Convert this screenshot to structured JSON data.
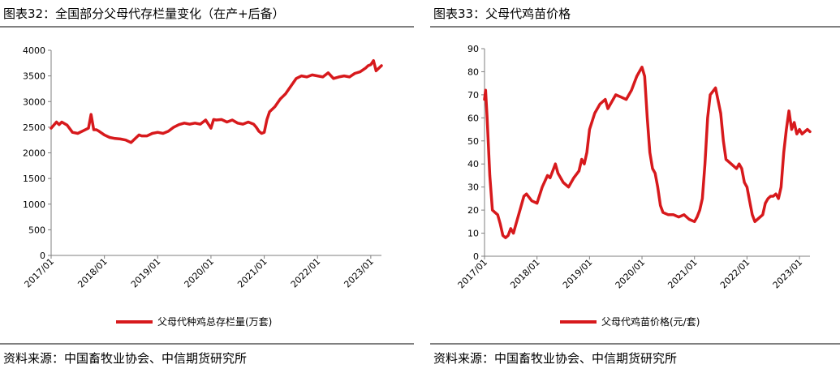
{
  "left": {
    "title": "图表32：全国部分父母代存栏量变化（在产+后备）",
    "source": "资料来源：中国畜牧业协会、中信期货研究所",
    "chart_data": {
      "type": "line",
      "color": "#d7191c",
      "ylim": [
        0,
        4000
      ],
      "yticks": [
        "0",
        "500",
        "1000",
        "1500",
        "2000",
        "2500",
        "3000",
        "3500",
        "4000"
      ],
      "xticks": [
        "2017/01",
        "2018/01",
        "2019/01",
        "2020/01",
        "2021/01",
        "2022/01",
        "2023/01"
      ],
      "series": [
        {
          "name": "父母代种鸡总存栏量(万套)",
          "x": [
            2017.0,
            2017.05,
            2017.1,
            2017.15,
            2017.2,
            2017.3,
            2017.4,
            2017.5,
            2017.6,
            2017.7,
            2017.75,
            2017.8,
            2017.85,
            2017.9,
            2018.0,
            2018.1,
            2018.2,
            2018.3,
            2018.4,
            2018.5,
            2018.6,
            2018.65,
            2018.7,
            2018.8,
            2018.9,
            2019.0,
            2019.1,
            2019.2,
            2019.3,
            2019.4,
            2019.5,
            2019.6,
            2019.7,
            2019.8,
            2019.9,
            2019.95,
            2020.0,
            2020.05,
            2020.1,
            2020.2,
            2020.3,
            2020.4,
            2020.5,
            2020.6,
            2020.7,
            2020.8,
            2020.85,
            2020.9,
            2020.95,
            2021.0,
            2021.05,
            2021.1,
            2021.2,
            2021.3,
            2021.4,
            2021.5,
            2021.6,
            2021.7,
            2021.8,
            2021.9,
            2022.0,
            2022.1,
            2022.2,
            2022.3,
            2022.4,
            2022.5,
            2022.6,
            2022.7,
            2022.8,
            2022.9,
            2022.95,
            2023.0,
            2023.05,
            2023.1,
            2023.15,
            2023.2
          ],
          "values": [
            2480,
            2540,
            2600,
            2550,
            2600,
            2540,
            2400,
            2380,
            2430,
            2480,
            2750,
            2450,
            2450,
            2420,
            2350,
            2300,
            2280,
            2270,
            2250,
            2200,
            2300,
            2350,
            2330,
            2330,
            2380,
            2400,
            2380,
            2420,
            2500,
            2550,
            2580,
            2560,
            2580,
            2560,
            2640,
            2560,
            2480,
            2650,
            2640,
            2650,
            2600,
            2640,
            2580,
            2560,
            2600,
            2560,
            2500,
            2420,
            2380,
            2400,
            2650,
            2800,
            2900,
            3050,
            3150,
            3300,
            3450,
            3500,
            3480,
            3520,
            3500,
            3480,
            3560,
            3450,
            3480,
            3500,
            3480,
            3550,
            3580,
            3650,
            3700,
            3720,
            3800,
            3600,
            3650,
            3700
          ]
        }
      ]
    }
  },
  "right": {
    "title": "图表33：父母代鸡苗价格",
    "source": "资料来源：中国畜牧业协会、中信期货研究所",
    "chart_data": {
      "type": "line",
      "color": "#d7191c",
      "ylim": [
        0,
        90
      ],
      "yticks": [
        "0",
        "10",
        "20",
        "30",
        "40",
        "50",
        "60",
        "70",
        "80",
        "90"
      ],
      "xticks": [
        "2017/01",
        "2018/01",
        "2019/01",
        "2020/01",
        "2021/01",
        "2022/01",
        "2023/01"
      ],
      "series": [
        {
          "name": "父母代鸡苗价格(元/套)",
          "x": [
            2017.0,
            2017.02,
            2017.05,
            2017.1,
            2017.15,
            2017.2,
            2017.25,
            2017.3,
            2017.35,
            2017.4,
            2017.45,
            2017.5,
            2017.55,
            2017.6,
            2017.7,
            2017.75,
            2017.8,
            2017.9,
            2018.0,
            2018.1,
            2018.2,
            2018.25,
            2018.3,
            2018.35,
            2018.4,
            2018.5,
            2018.6,
            2018.7,
            2018.8,
            2018.85,
            2018.9,
            2018.95,
            2019.0,
            2019.1,
            2019.2,
            2019.3,
            2019.35,
            2019.4,
            2019.5,
            2019.6,
            2019.7,
            2019.8,
            2019.85,
            2019.9,
            2019.95,
            2020.0,
            2020.05,
            2020.1,
            2020.15,
            2020.2,
            2020.25,
            2020.3,
            2020.35,
            2020.4,
            2020.5,
            2020.6,
            2020.7,
            2020.8,
            2020.9,
            2021.0,
            2021.05,
            2021.1,
            2021.15,
            2021.2,
            2021.25,
            2021.3,
            2021.4,
            2021.5,
            2021.55,
            2021.6,
            2021.7,
            2021.8,
            2021.85,
            2021.9,
            2021.95,
            2022.0,
            2022.05,
            2022.1,
            2022.15,
            2022.2,
            2022.3,
            2022.35,
            2022.4,
            2022.45,
            2022.5,
            2022.55,
            2022.6,
            2022.65,
            2022.7,
            2022.75,
            2022.8,
            2022.85,
            2022.9,
            2022.95,
            2023.0,
            2023.05,
            2023.1,
            2023.15,
            2023.2
          ],
          "values": [
            68,
            72,
            60,
            35,
            20,
            19,
            18,
            14,
            9,
            8,
            9,
            12,
            10,
            14,
            22,
            26,
            27,
            24,
            23,
            30,
            35,
            34,
            37,
            40,
            36,
            32,
            30,
            34,
            37,
            42,
            40,
            45,
            55,
            62,
            66,
            68,
            64,
            66,
            70,
            69,
            68,
            72,
            75,
            78,
            80,
            82,
            78,
            60,
            45,
            38,
            36,
            30,
            22,
            19,
            18,
            18,
            17,
            18,
            16,
            15,
            17,
            20,
            25,
            40,
            60,
            70,
            73,
            62,
            50,
            42,
            40,
            38,
            40,
            38,
            32,
            30,
            24,
            18,
            15,
            16,
            18,
            23,
            25,
            26,
            26,
            27,
            25,
            30,
            45,
            55,
            63,
            55,
            58,
            53,
            55,
            53,
            54,
            55,
            54
          ]
        }
      ]
    }
  }
}
